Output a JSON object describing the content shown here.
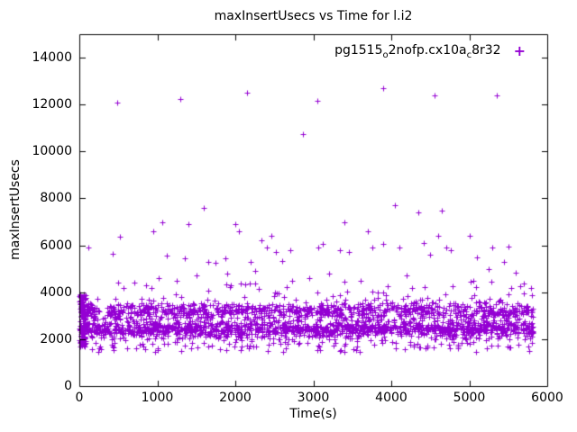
{
  "legend": {
    "parts": [
      {
        "text": "pg1515",
        "sub": false
      },
      {
        "text": "o",
        "sub": true
      },
      {
        "text": "2nofp.cx10a",
        "sub": false
      },
      {
        "text": "c",
        "sub": true
      },
      {
        "text": "8r32",
        "sub": false
      }
    ],
    "marker": "+",
    "position": "top-right"
  },
  "chart_data": {
    "type": "scatter",
    "title": "maxInsertUsecs vs Time for l.i2",
    "xlabel": "Time(s)",
    "ylabel": "maxInsertUsecs",
    "xlim": [
      0,
      6000
    ],
    "ylim": [
      0,
      15000
    ],
    "xticks": [
      0,
      1000,
      2000,
      3000,
      4000,
      5000,
      6000
    ],
    "yticks": [
      0,
      2000,
      4000,
      6000,
      8000,
      10000,
      12000,
      14000
    ],
    "grid": false,
    "legend_position": "top-right",
    "marker": {
      "shape": "plus",
      "color": "#9400d3",
      "size": 7
    },
    "series": [
      {
        "name": "pg1515o2nofp.cx10ac8r32",
        "dense_band": {
          "n_points": 2500,
          "x_range": [
            4,
            5820
          ],
          "components": [
            {
              "type": "gauss",
              "weight": 0.4,
              "mean": 2450,
              "sd": 150
            },
            {
              "type": "gauss",
              "weight": 0.31,
              "mean": 3250,
              "sd": 160
            },
            {
              "type": "uniform",
              "weight": 0.18,
              "min": 1950,
              "max": 3050
            },
            {
              "type": "uniform",
              "weight": 0.045,
              "min": 1450,
              "max": 1900
            },
            {
              "type": "uniform",
              "weight": 0.025,
              "min": 3650,
              "max": 4500
            },
            {
              "type": "gauss",
              "weight": 0.04,
              "mean": 2850,
              "sd": 350
            }
          ],
          "y_clamp": [
            1350,
            4650
          ],
          "startup_burst": {
            "n_points": 130,
            "x_range": [
              4,
              85
            ],
            "y_range": [
              1700,
              3950
            ]
          }
        },
        "outliers": [
          [
            480,
            12100
          ],
          [
            1300,
            12250
          ],
          [
            2150,
            12500
          ],
          [
            2870,
            10750
          ],
          [
            3050,
            12150
          ],
          [
            3900,
            12700
          ],
          [
            4550,
            12400
          ],
          [
            5350,
            12400
          ],
          [
            120,
            5900
          ],
          [
            430,
            5650
          ],
          [
            520,
            6350
          ],
          [
            700,
            4400
          ],
          [
            950,
            6600
          ],
          [
            1020,
            4600
          ],
          [
            1060,
            7000
          ],
          [
            1120,
            5550
          ],
          [
            1350,
            5450
          ],
          [
            1400,
            6900
          ],
          [
            1500,
            4700
          ],
          [
            1600,
            7600
          ],
          [
            1650,
            5300
          ],
          [
            1750,
            5250
          ],
          [
            1870,
            5450
          ],
          [
            1900,
            4800
          ],
          [
            2000,
            6900
          ],
          [
            2050,
            6600
          ],
          [
            2200,
            5300
          ],
          [
            2250,
            4900
          ],
          [
            2340,
            6200
          ],
          [
            2400,
            5900
          ],
          [
            2460,
            6400
          ],
          [
            2520,
            5700
          ],
          [
            2600,
            5350
          ],
          [
            2700,
            5800
          ],
          [
            2950,
            4600
          ],
          [
            3060,
            5900
          ],
          [
            3120,
            6050
          ],
          [
            3200,
            4800
          ],
          [
            3340,
            5800
          ],
          [
            3400,
            7000
          ],
          [
            3460,
            5700
          ],
          [
            3700,
            6600
          ],
          [
            3760,
            5900
          ],
          [
            3900,
            6050
          ],
          [
            4050,
            7700
          ],
          [
            4100,
            5900
          ],
          [
            4200,
            4700
          ],
          [
            4350,
            7400
          ],
          [
            4420,
            6100
          ],
          [
            4500,
            5600
          ],
          [
            4600,
            6400
          ],
          [
            4650,
            7500
          ],
          [
            4700,
            5900
          ],
          [
            4760,
            5800
          ],
          [
            5000,
            6400
          ],
          [
            5050,
            4500
          ],
          [
            5100,
            5500
          ],
          [
            5250,
            5000
          ],
          [
            5300,
            5900
          ],
          [
            5450,
            5300
          ],
          [
            5500,
            5950
          ],
          [
            5600,
            4850
          ]
        ]
      }
    ]
  }
}
